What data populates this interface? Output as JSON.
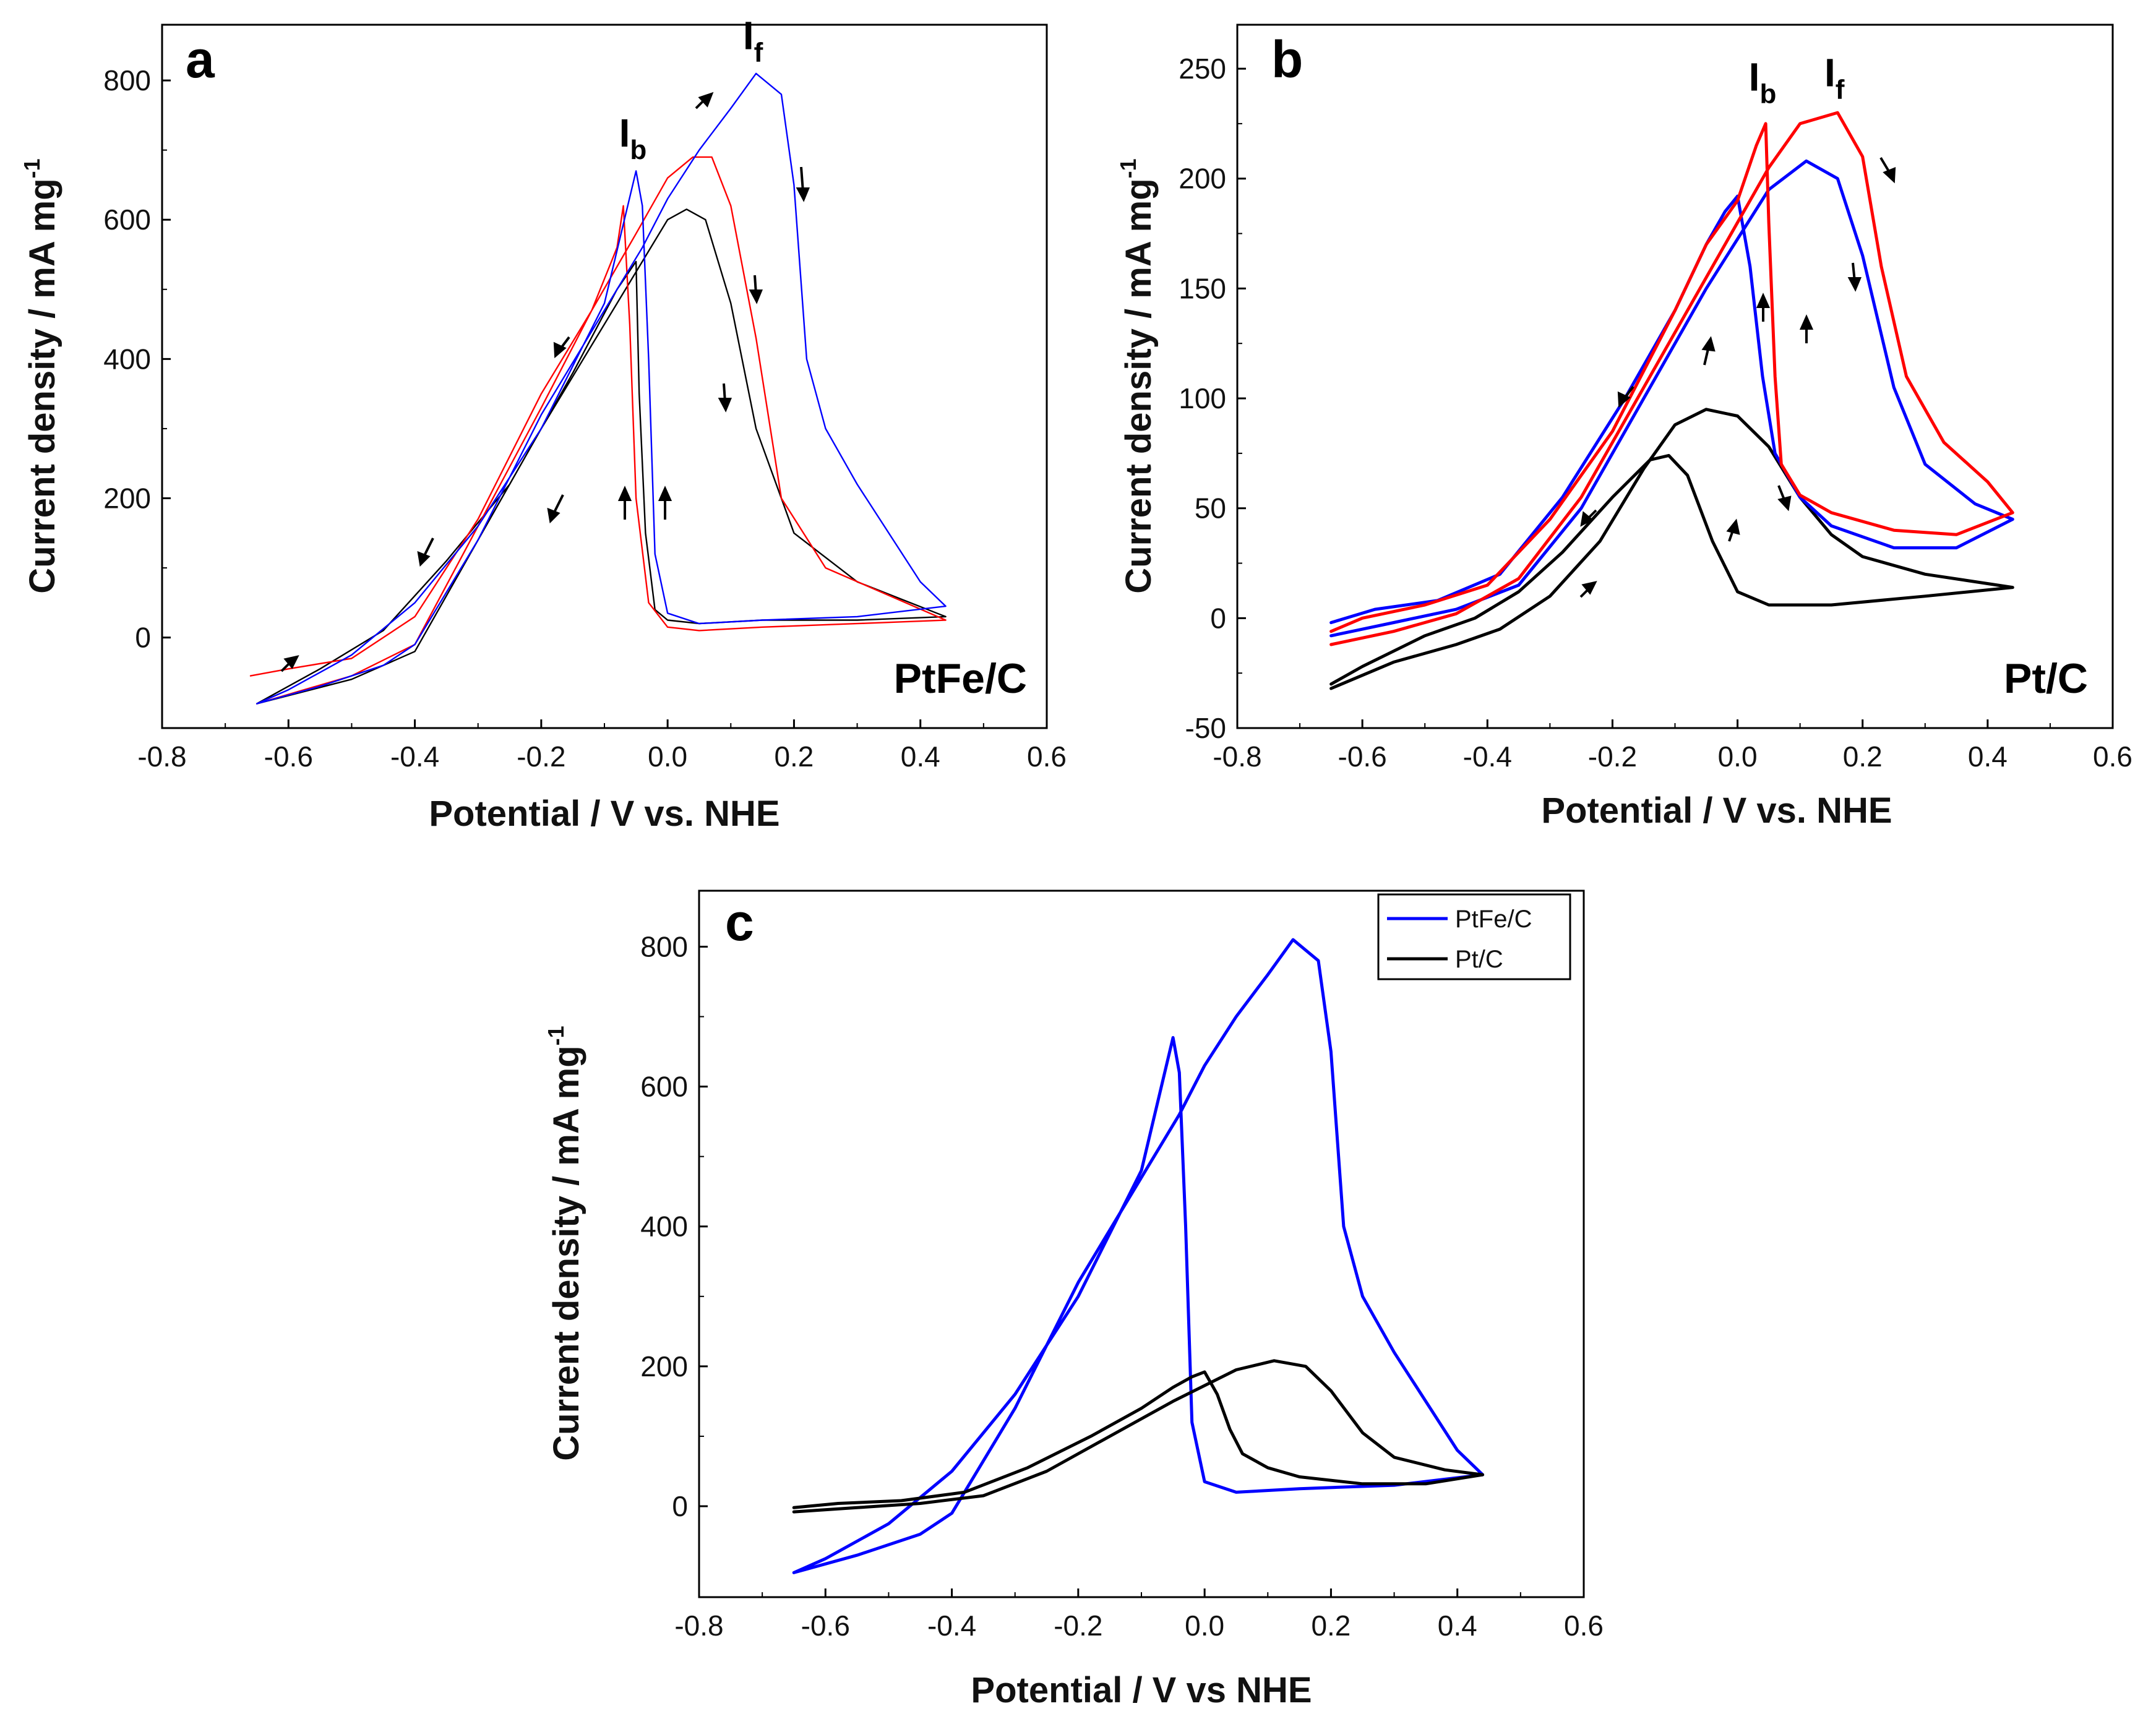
{
  "chart_data": [
    {
      "id": "a",
      "type": "line",
      "panel_label": "a",
      "sample_label": "PtFe/C",
      "xlabel": "Potential / V vs. NHE",
      "ylabel": "Current density / mA mg",
      "ylabel_sup": "-1",
      "xlim": [
        -0.8,
        0.6
      ],
      "ylim": [
        -130,
        880
      ],
      "xticks": [
        -0.8,
        -0.6,
        -0.4,
        -0.2,
        0.0,
        0.2,
        0.4,
        0.6
      ],
      "xtick_labels": [
        "-0.8",
        "-0.6",
        "-0.4",
        "-0.2",
        "0.0",
        "0.2",
        "0.4",
        "0.6"
      ],
      "yticks": [
        0,
        200,
        400,
        600,
        800
      ],
      "ytick_labels": [
        "0",
        "200",
        "400",
        "600",
        "800"
      ],
      "annotations": [
        {
          "text": "I",
          "sub": "b",
          "x": -0.055,
          "y": 705
        },
        {
          "text": "I",
          "sub": "f",
          "x": 0.135,
          "y": 845
        }
      ],
      "series": [
        {
          "name": "cycle-black",
          "color": "#000000",
          "stroke": 2.4,
          "x": [
            -0.65,
            -0.5,
            -0.4,
            -0.3,
            -0.2,
            -0.12,
            -0.06,
            0.0,
            0.03,
            0.06,
            0.1,
            0.14,
            0.2,
            0.3,
            0.44,
            0.3,
            0.15,
            0.05,
            0.0,
            -0.02,
            -0.035,
            -0.045,
            -0.05,
            -0.08,
            -0.15,
            -0.25,
            -0.35,
            -0.45,
            -0.55,
            -0.65
          ],
          "y": [
            -95,
            -60,
            -20,
            140,
            300,
            420,
            510,
            600,
            615,
            600,
            480,
            300,
            150,
            80,
            30,
            25,
            25,
            20,
            25,
            40,
            150,
            350,
            540,
            500,
            380,
            220,
            110,
            10,
            -45,
            -95
          ]
        },
        {
          "name": "cycle-red",
          "color": "#ff0000",
          "stroke": 2.4,
          "x": [
            -0.65,
            -0.5,
            -0.4,
            -0.3,
            -0.2,
            -0.12,
            -0.05,
            0.0,
            0.04,
            0.07,
            0.1,
            0.14,
            0.18,
            0.25,
            0.44,
            0.3,
            0.15,
            0.05,
            0.0,
            -0.03,
            -0.05,
            -0.06,
            -0.07,
            -0.08,
            -0.12,
            -0.2,
            -0.3,
            -0.4,
            -0.5,
            -0.6,
            -0.66
          ],
          "y": [
            -95,
            -55,
            -10,
            160,
            330,
            470,
            580,
            660,
            690,
            690,
            620,
            430,
            200,
            100,
            25,
            20,
            15,
            10,
            15,
            50,
            200,
            450,
            620,
            560,
            470,
            350,
            170,
            30,
            -30,
            -45,
            -55
          ]
        },
        {
          "name": "cycle-blue",
          "color": "#0000ff",
          "stroke": 2.4,
          "x": [
            -0.65,
            -0.55,
            -0.45,
            -0.4,
            -0.3,
            -0.2,
            -0.1,
            -0.04,
            0.0,
            0.05,
            0.1,
            0.14,
            0.18,
            0.2,
            0.22,
            0.25,
            0.3,
            0.4,
            0.44,
            0.3,
            0.15,
            0.05,
            0.0,
            -0.02,
            -0.03,
            -0.04,
            -0.05,
            -0.1,
            -0.2,
            -0.3,
            -0.4,
            -0.5,
            -0.6,
            -0.65
          ],
          "y": [
            -95,
            -70,
            -40,
            -10,
            140,
            320,
            470,
            560,
            630,
            700,
            760,
            810,
            780,
            650,
            400,
            300,
            220,
            80,
            45,
            30,
            25,
            20,
            35,
            120,
            400,
            620,
            670,
            480,
            300,
            160,
            50,
            -25,
            -75,
            -95
          ]
        }
      ]
    },
    {
      "id": "b",
      "type": "line",
      "panel_label": "b",
      "sample_label": "Pt/C",
      "xlabel": "Potential / V vs. NHE",
      "ylabel": "Current density / mA mg",
      "ylabel_sup": "-1",
      "xlim": [
        -0.8,
        0.6
      ],
      "ylim": [
        -50,
        270
      ],
      "xticks": [
        -0.8,
        -0.6,
        -0.4,
        -0.2,
        0.0,
        0.2,
        0.4,
        0.6
      ],
      "xtick_labels": [
        "-0.8",
        "-0.6",
        "-0.4",
        "-0.2",
        "0.0",
        "0.2",
        "0.4",
        "0.6"
      ],
      "yticks": [
        -50,
        0,
        50,
        100,
        150,
        200,
        250
      ],
      "ytick_labels": [
        "-50",
        "0",
        "50",
        "100",
        "150",
        "200",
        "250"
      ],
      "annotations": [
        {
          "text": "I",
          "sub": "b",
          "x": 0.04,
          "y": 240
        },
        {
          "text": "I",
          "sub": "f",
          "x": 0.155,
          "y": 242
        }
      ],
      "series": [
        {
          "name": "cycle-black",
          "color": "#000000",
          "stroke": 5,
          "x": [
            -0.65,
            -0.55,
            -0.45,
            -0.38,
            -0.3,
            -0.22,
            -0.15,
            -0.1,
            -0.05,
            0.0,
            0.05,
            0.1,
            0.15,
            0.2,
            0.3,
            0.44,
            0.3,
            0.15,
            0.05,
            0.0,
            -0.04,
            -0.08,
            -0.11,
            -0.14,
            -0.2,
            -0.28,
            -0.35,
            -0.42,
            -0.5,
            -0.6,
            -0.65
          ],
          "y": [
            -32,
            -20,
            -12,
            -5,
            10,
            35,
            68,
            88,
            95,
            92,
            78,
            55,
            38,
            28,
            20,
            14,
            10,
            6,
            6,
            12,
            35,
            65,
            74,
            72,
            55,
            30,
            12,
            0,
            -8,
            -22,
            -30
          ]
        },
        {
          "name": "cycle-blue",
          "color": "#0000ff",
          "stroke": 5,
          "x": [
            -0.65,
            -0.55,
            -0.45,
            -0.35,
            -0.25,
            -0.15,
            -0.05,
            0.05,
            0.11,
            0.16,
            0.2,
            0.25,
            0.3,
            0.38,
            0.44,
            0.35,
            0.25,
            0.15,
            0.1,
            0.06,
            0.04,
            0.02,
            0.0,
            -0.02,
            -0.05,
            -0.1,
            -0.18,
            -0.28,
            -0.38,
            -0.48,
            -0.58,
            -0.65
          ],
          "y": [
            -8,
            -2,
            4,
            15,
            50,
            100,
            150,
            195,
            208,
            200,
            165,
            105,
            70,
            52,
            45,
            32,
            32,
            42,
            55,
            75,
            110,
            160,
            192,
            185,
            170,
            140,
            100,
            55,
            20,
            8,
            4,
            -2
          ]
        },
        {
          "name": "cycle-red",
          "color": "#ff0000",
          "stroke": 5,
          "x": [
            -0.65,
            -0.55,
            -0.45,
            -0.35,
            -0.25,
            -0.15,
            -0.05,
            0.05,
            0.1,
            0.16,
            0.2,
            0.23,
            0.27,
            0.33,
            0.4,
            0.44,
            0.35,
            0.25,
            0.15,
            0.1,
            0.07,
            0.06,
            0.05,
            0.045,
            0.03,
            0.0,
            -0.05,
            -0.1,
            -0.2,
            -0.3,
            -0.4,
            -0.5,
            -0.6,
            -0.65
          ],
          "y": [
            -12,
            -6,
            2,
            18,
            55,
            105,
            155,
            205,
            225,
            230,
            210,
            160,
            110,
            80,
            62,
            48,
            38,
            40,
            48,
            56,
            70,
            110,
            180,
            225,
            215,
            190,
            170,
            140,
            85,
            45,
            15,
            6,
            0,
            -6
          ]
        }
      ]
    },
    {
      "id": "c",
      "type": "line",
      "panel_label": "c",
      "xlabel": "Potential / V vs NHE",
      "ylabel": "Current density / mA mg",
      "ylabel_sup": "-1",
      "xlim": [
        -0.8,
        0.6
      ],
      "ylim": [
        -130,
        880
      ],
      "xticks": [
        -0.8,
        -0.6,
        -0.4,
        -0.2,
        0.0,
        0.2,
        0.4,
        0.6
      ],
      "xtick_labels": [
        "-0.8",
        "-0.6",
        "-0.4",
        "-0.2",
        "0.0",
        "0.2",
        "0.4",
        "0.6"
      ],
      "yticks": [
        0,
        200,
        400,
        600,
        800
      ],
      "ytick_labels": [
        "0",
        "200",
        "400",
        "600",
        "800"
      ],
      "legend": {
        "position": "top-right",
        "entries": [
          "PtFe/C",
          "Pt/C"
        ]
      },
      "series": [
        {
          "name": "PtFe/C",
          "color": "#0000ff",
          "stroke": 5,
          "x": [
            -0.65,
            -0.55,
            -0.45,
            -0.4,
            -0.3,
            -0.2,
            -0.1,
            -0.04,
            0.0,
            0.05,
            0.1,
            0.14,
            0.18,
            0.2,
            0.22,
            0.25,
            0.3,
            0.4,
            0.44,
            0.3,
            0.15,
            0.05,
            0.0,
            -0.02,
            -0.03,
            -0.04,
            -0.05,
            -0.1,
            -0.2,
            -0.3,
            -0.4,
            -0.5,
            -0.6,
            -0.65
          ],
          "y": [
            -95,
            -70,
            -40,
            -10,
            140,
            320,
            470,
            560,
            630,
            700,
            760,
            810,
            780,
            650,
            400,
            300,
            220,
            80,
            45,
            30,
            25,
            20,
            35,
            120,
            400,
            620,
            670,
            480,
            300,
            160,
            50,
            -25,
            -75,
            -95
          ]
        },
        {
          "name": "Pt/C",
          "color": "#000000",
          "stroke": 5,
          "x": [
            -0.65,
            -0.55,
            -0.45,
            -0.35,
            -0.25,
            -0.15,
            -0.05,
            0.05,
            0.11,
            0.16,
            0.2,
            0.25,
            0.3,
            0.38,
            0.44,
            0.35,
            0.25,
            0.15,
            0.1,
            0.06,
            0.04,
            0.02,
            0.0,
            -0.02,
            -0.05,
            -0.1,
            -0.18,
            -0.28,
            -0.38,
            -0.48,
            -0.58,
            -0.65
          ],
          "y": [
            -8,
            -2,
            4,
            15,
            50,
            100,
            150,
            195,
            208,
            200,
            165,
            105,
            70,
            52,
            45,
            32,
            32,
            42,
            55,
            75,
            110,
            160,
            192,
            185,
            170,
            140,
            100,
            55,
            20,
            8,
            4,
            -2
          ]
        }
      ]
    }
  ]
}
